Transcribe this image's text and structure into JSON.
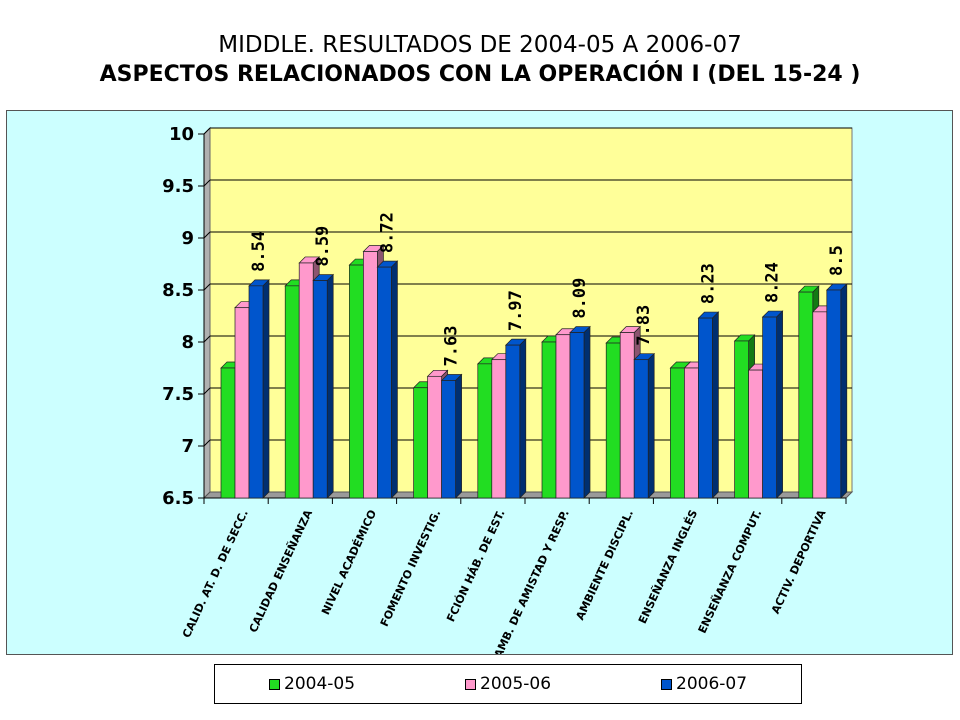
{
  "header": {
    "title_line1": "MIDDLE. RESULTADOS DE 2004-05  A 2006-07",
    "title_line2": "ASPECTOS RELACIONADOS CON LA OPERACIÓN  I (DEL  15-24 )"
  },
  "colors": {
    "series": [
      "#22dd22",
      "#ff99cc",
      "#0055cc"
    ],
    "plot_background": "#ffff99",
    "panel_background": "#ccffff"
  },
  "chart_data": {
    "type": "bar",
    "title": "MIDDLE. RESULTADOS DE 2004-05  A 2006-07 / ASPECTOS RELACIONADOS CON LA OPERACIÓN  I (DEL  15-24 )",
    "categories": [
      "CALID. AT. D. DE SECC.",
      "CALIDAD ENSEÑANZA",
      "NIVEL ACADÉMICO",
      "FOMENTO INVESTIG.",
      "FCIÓN HÁB. DE EST.",
      "AMB. DE AMISTAD Y RESP.",
      "AMBIENTE DISCIPL.",
      "ENSEÑANZA INGLÉS",
      "ENSEÑANZA COMPUT.",
      "ACTIV. DEPORTIVA"
    ],
    "series": [
      {
        "name": "2004-05",
        "values": [
          7.75,
          8.54,
          8.74,
          7.56,
          7.79,
          8.0,
          7.99,
          7.75,
          8.01,
          8.48
        ]
      },
      {
        "name": "2005-06",
        "values": [
          8.33,
          8.76,
          8.87,
          7.67,
          7.83,
          8.07,
          8.09,
          7.75,
          7.73,
          8.29
        ]
      },
      {
        "name": "2006-07",
        "values": [
          8.54,
          8.59,
          8.72,
          7.63,
          7.97,
          8.09,
          7.83,
          8.23,
          8.24,
          8.5
        ]
      }
    ],
    "data_labels": [
      "8.54",
      "8.59",
      "8.72",
      "7.63",
      "7.97",
      "8.09",
      "7.83",
      "8.23",
      "8.24",
      "8.5"
    ],
    "y_ticks": [
      "6.5",
      "7",
      "7.5",
      "8",
      "8.5",
      "9",
      "9.5",
      "10"
    ],
    "ylim": [
      6.5,
      10
    ],
    "grid": true,
    "legend_position": "bottom",
    "xlabel": "",
    "ylabel": ""
  }
}
